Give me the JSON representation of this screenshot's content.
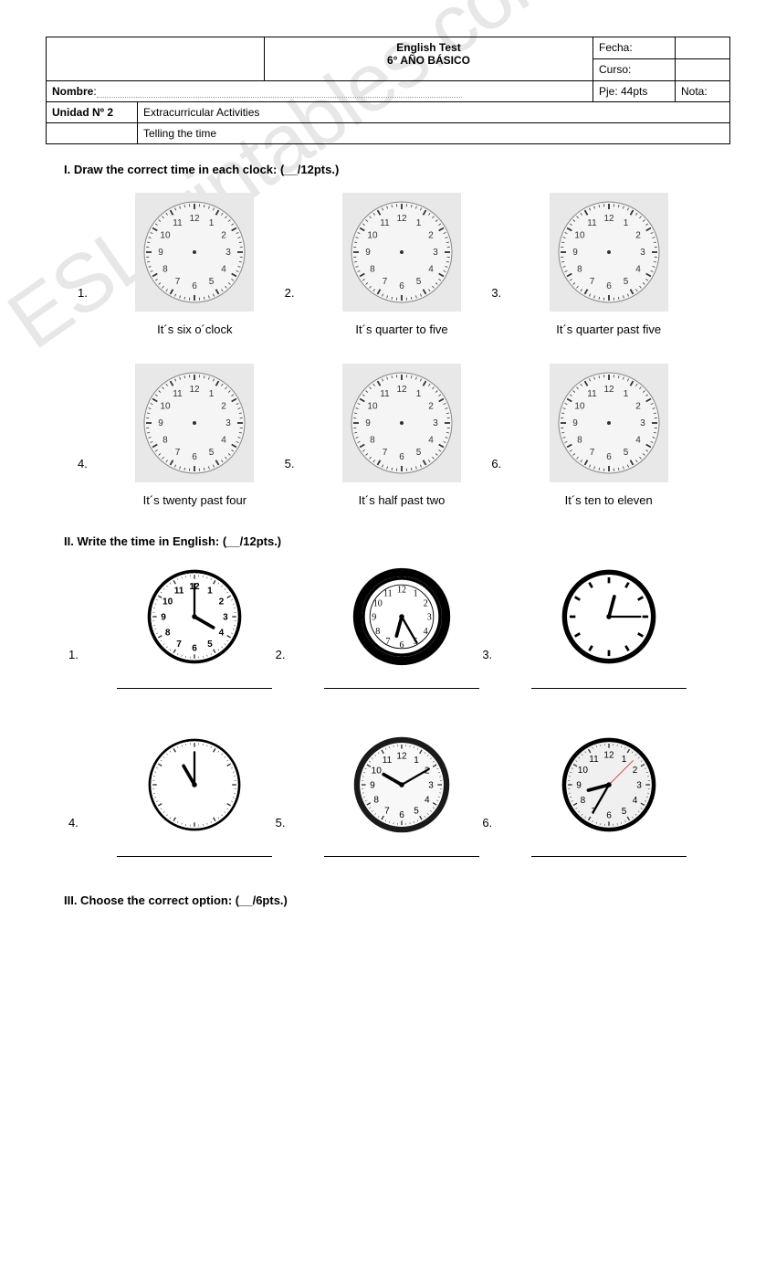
{
  "watermark_text": "ESLprintables.com",
  "header": {
    "title_line1": "English Test",
    "title_line2": "6°  AÑO BÁSICO",
    "fecha_label": "Fecha:",
    "curso_label": "Curso:",
    "pje_label": "Pje: 44pts",
    "nota_label": "Nota:",
    "nombre_label": "Nombre",
    "unidad_label": "Unidad Nº 2",
    "unidad_value": "Extracurricular Activities",
    "topic_value": "Telling the time"
  },
  "section1": {
    "heading": "I.   Draw the correct time in each clock: (__/12pts.)",
    "clocks": [
      {
        "num": "1.",
        "label": "It´s six o´clock"
      },
      {
        "num": "2.",
        "label": "It´s quarter to five"
      },
      {
        "num": "3.",
        "label": "It´s quarter past five"
      },
      {
        "num": "4.",
        "label": "It´s twenty past four"
      },
      {
        "num": "5.",
        "label": "It´s half past two"
      },
      {
        "num": "6.",
        "label": "It´s ten to eleven"
      }
    ],
    "blank_clock_style": {
      "bg": "#e8e8e8",
      "face_fill": "#f5f5f5",
      "face_stroke": "#888888",
      "tick_color": "#333333",
      "number_color": "#333333",
      "number_fontsize": 10
    }
  },
  "section2": {
    "heading": "II.  Write the time in English: (__/12pts.)",
    "clocks": [
      {
        "num": "1.",
        "style": "fancy_white",
        "hour_angle": 120,
        "minute_angle": 0,
        "rim_color": "#000000",
        "face_color": "#ffffff"
      },
      {
        "num": "2.",
        "style": "ornate_black",
        "hour_angle": 195,
        "minute_angle": 150,
        "rim_color": "#000000",
        "face_color": "#ffffff"
      },
      {
        "num": "3.",
        "style": "minimal_black",
        "hour_angle": 15,
        "minute_angle": 90,
        "rim_color": "#000000",
        "face_color": "#ffffff"
      },
      {
        "num": "4.",
        "style": "thin_black",
        "hour_angle": 330,
        "minute_angle": 0,
        "rim_color": "#000000",
        "face_color": "#ffffff"
      },
      {
        "num": "5.",
        "style": "numbered_black",
        "hour_angle": 300,
        "minute_angle": 60,
        "rim_color": "#1a1a1a",
        "face_color": "#f8f8f8"
      },
      {
        "num": "6.",
        "style": "numbered_grey",
        "hour_angle": 255,
        "minute_angle": 210,
        "rim_color": "#000000",
        "face_color": "#f0f0f0",
        "second_color": "#cc4444"
      }
    ]
  },
  "section3": {
    "heading": "III. Choose the correct option: (__/6pts.)"
  },
  "colors": {
    "text": "#000000",
    "border": "#000000",
    "watermark": "#d8d8d8"
  }
}
